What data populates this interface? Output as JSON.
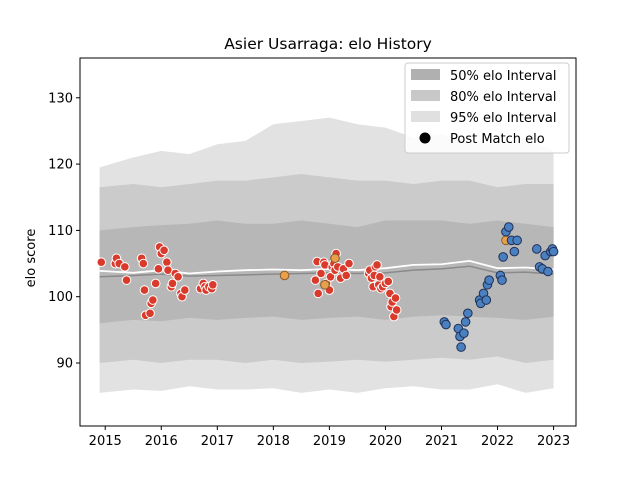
{
  "chart_data": {
    "type": "scatter",
    "title": "Asier Usarraga: elo History",
    "xlabel": "",
    "ylabel": "elo score",
    "xlim": [
      2014.55,
      2023.4
    ],
    "ylim": [
      80.5,
      136
    ],
    "x_ticks": [
      2015,
      2016,
      2017,
      2018,
      2019,
      2020,
      2021,
      2022,
      2023
    ],
    "y_ticks": [
      90,
      100,
      110,
      120,
      130
    ],
    "grid": false,
    "legend_position": "top-right",
    "legend": [
      {
        "label": "50% elo Interval",
        "kind": "band",
        "color": "#b0b0b0"
      },
      {
        "label": "80% elo Interval",
        "kind": "band",
        "color": "#c8c8c8"
      },
      {
        "label": "95% elo Interval",
        "kind": "band",
        "color": "#e0e0e0"
      },
      {
        "label": "Post Match elo",
        "kind": "marker",
        "color": "#000000"
      }
    ],
    "colors": {
      "band95": "#e2e2e2",
      "band80": "#cbcbcb",
      "band50": "#b7b7b7",
      "mean_line": "#ffffff",
      "median_line": "#8a8a8a",
      "red": "#d93a2b",
      "blue": "#4a7fc0",
      "orange": "#e8a04a",
      "marker_edge_light": "#ffffff",
      "marker_edge_dark": "#1f2f55"
    },
    "bands": {
      "x": [
        2014.9,
        2015.5,
        2016.0,
        2016.5,
        2017.0,
        2017.5,
        2018.0,
        2018.5,
        2019.0,
        2019.5,
        2020.0,
        2020.5,
        2021.0,
        2021.5,
        2022.0,
        2022.5,
        2023.0
      ],
      "p95_low": [
        85.5,
        86.0,
        85.8,
        86.5,
        86.0,
        86.0,
        86.2,
        85.5,
        86.0,
        85.5,
        86.2,
        86.5,
        86.0,
        86.0,
        86.8,
        85.5,
        86.2
      ],
      "p95_high": [
        119.5,
        121.0,
        122.0,
        121.5,
        123.0,
        123.5,
        126.0,
        126.5,
        127.0,
        126.0,
        125.5,
        124.0,
        124.5,
        123.5,
        123.0,
        124.0,
        122.0
      ],
      "p80_low": [
        90.0,
        90.5,
        90.0,
        90.5,
        90.5,
        90.0,
        90.5,
        90.0,
        90.2,
        90.5,
        90.2,
        90.5,
        90.8,
        90.5,
        91.0,
        90.0,
        90.5
      ],
      "p80_high": [
        116.5,
        117.0,
        116.5,
        117.0,
        117.5,
        117.5,
        118.0,
        118.5,
        118.0,
        117.5,
        117.5,
        117.0,
        117.5,
        117.5,
        116.5,
        117.0,
        117.0
      ],
      "p50_low": [
        96.0,
        96.5,
        96.3,
        96.8,
        96.5,
        96.8,
        97.0,
        96.5,
        96.8,
        97.0,
        96.5,
        97.0,
        97.2,
        97.0,
        96.8,
        96.5,
        97.0
      ],
      "p50_high": [
        110.0,
        110.5,
        110.8,
        111.0,
        111.5,
        111.0,
        111.0,
        111.5,
        111.0,
        110.5,
        111.5,
        111.5,
        111.5,
        111.0,
        111.5,
        111.0,
        110.5
      ],
      "mean": [
        103.9,
        103.6,
        104.0,
        103.5,
        103.8,
        104.0,
        104.1,
        104.0,
        104.2,
        104.0,
        104.3,
        104.8,
        104.9,
        105.4,
        104.3,
        104.4,
        104.1
      ],
      "median": [
        103.0,
        103.2,
        103.4,
        103.1,
        103.2,
        103.3,
        103.4,
        103.5,
        103.6,
        103.5,
        103.6,
        104.0,
        104.2,
        104.6,
        103.6,
        103.7,
        103.4
      ]
    },
    "series": [
      {
        "color_key": "red",
        "points": [
          [
            2014.93,
            105.2
          ],
          [
            2015.18,
            105.0
          ],
          [
            2015.2,
            105.8
          ],
          [
            2015.25,
            105.0
          ],
          [
            2015.35,
            104.5
          ],
          [
            2015.38,
            102.5
          ],
          [
            2015.65,
            105.8
          ],
          [
            2015.68,
            105.0
          ],
          [
            2015.7,
            101.0
          ],
          [
            2015.72,
            97.2
          ],
          [
            2015.8,
            97.5
          ],
          [
            2015.82,
            99.0
          ],
          [
            2015.85,
            99.5
          ],
          [
            2015.9,
            102.0
          ],
          [
            2015.95,
            104.2
          ],
          [
            2015.97,
            107.5
          ],
          [
            2016.0,
            106.5
          ],
          [
            2016.05,
            107.0
          ],
          [
            2016.1,
            105.2
          ],
          [
            2016.12,
            104.0
          ],
          [
            2016.18,
            101.5
          ],
          [
            2016.2,
            102.0
          ],
          [
            2016.25,
            103.5
          ],
          [
            2016.3,
            103.0
          ],
          [
            2016.35,
            100.5
          ],
          [
            2016.37,
            100.0
          ],
          [
            2016.42,
            101.0
          ],
          [
            2016.7,
            101.2
          ],
          [
            2016.75,
            102.0
          ],
          [
            2016.78,
            101.5
          ],
          [
            2016.8,
            101.0
          ],
          [
            2016.85,
            101.5
          ],
          [
            2016.9,
            101.2
          ],
          [
            2016.92,
            101.8
          ],
          [
            2018.75,
            102.5
          ],
          [
            2018.78,
            105.3
          ],
          [
            2018.8,
            100.5
          ],
          [
            2018.85,
            103.5
          ],
          [
            2018.9,
            105.2
          ],
          [
            2018.92,
            104.8
          ],
          [
            2018.95,
            102.0
          ],
          [
            2019.0,
            101.0
          ],
          [
            2019.02,
            103.0
          ],
          [
            2019.05,
            104.5
          ],
          [
            2019.08,
            105.0
          ],
          [
            2019.1,
            104.0
          ],
          [
            2019.12,
            106.5
          ],
          [
            2019.15,
            104.5
          ],
          [
            2019.2,
            102.8
          ],
          [
            2019.25,
            104.2
          ],
          [
            2019.3,
            103.2
          ],
          [
            2019.35,
            105.0
          ],
          [
            2019.7,
            103.5
          ],
          [
            2019.72,
            104.0
          ],
          [
            2019.75,
            102.8
          ],
          [
            2019.78,
            101.5
          ],
          [
            2019.8,
            103.2
          ],
          [
            2019.82,
            104.5
          ],
          [
            2019.85,
            104.8
          ],
          [
            2019.88,
            101.8
          ],
          [
            2019.9,
            103.0
          ],
          [
            2019.92,
            101.2
          ],
          [
            2019.95,
            101.5
          ],
          [
            2020.0,
            102.0
          ],
          [
            2020.05,
            102.3
          ],
          [
            2020.08,
            100.5
          ],
          [
            2020.1,
            98.5
          ],
          [
            2020.12,
            99.2
          ],
          [
            2020.15,
            97.0
          ],
          [
            2020.18,
            99.8
          ],
          [
            2020.2,
            98.0
          ]
        ]
      },
      {
        "color_key": "orange",
        "points": [
          [
            2018.2,
            103.2
          ],
          [
            2018.92,
            101.8
          ],
          [
            2019.1,
            105.8
          ],
          [
            2022.15,
            108.5
          ]
        ]
      },
      {
        "color_key": "blue",
        "points": [
          [
            2021.05,
            96.2
          ],
          [
            2021.08,
            95.8
          ],
          [
            2021.3,
            95.2
          ],
          [
            2021.33,
            94.0
          ],
          [
            2021.35,
            92.4
          ],
          [
            2021.4,
            94.5
          ],
          [
            2021.43,
            96.2
          ],
          [
            2021.47,
            97.5
          ],
          [
            2021.68,
            99.5
          ],
          [
            2021.7,
            99.0
          ],
          [
            2021.75,
            100.5
          ],
          [
            2021.8,
            99.5
          ],
          [
            2021.82,
            101.8
          ],
          [
            2021.85,
            102.5
          ],
          [
            2022.05,
            103.2
          ],
          [
            2022.08,
            102.5
          ],
          [
            2022.1,
            106.0
          ],
          [
            2022.15,
            109.8
          ],
          [
            2022.2,
            110.5
          ],
          [
            2022.25,
            108.5
          ],
          [
            2022.3,
            106.8
          ],
          [
            2022.35,
            108.5
          ],
          [
            2022.7,
            107.2
          ],
          [
            2022.75,
            104.5
          ],
          [
            2022.8,
            104.2
          ],
          [
            2022.85,
            106.2
          ],
          [
            2022.9,
            103.8
          ],
          [
            2022.95,
            106.8
          ],
          [
            2022.98,
            107.2
          ],
          [
            2023.0,
            106.8
          ]
        ]
      }
    ]
  }
}
